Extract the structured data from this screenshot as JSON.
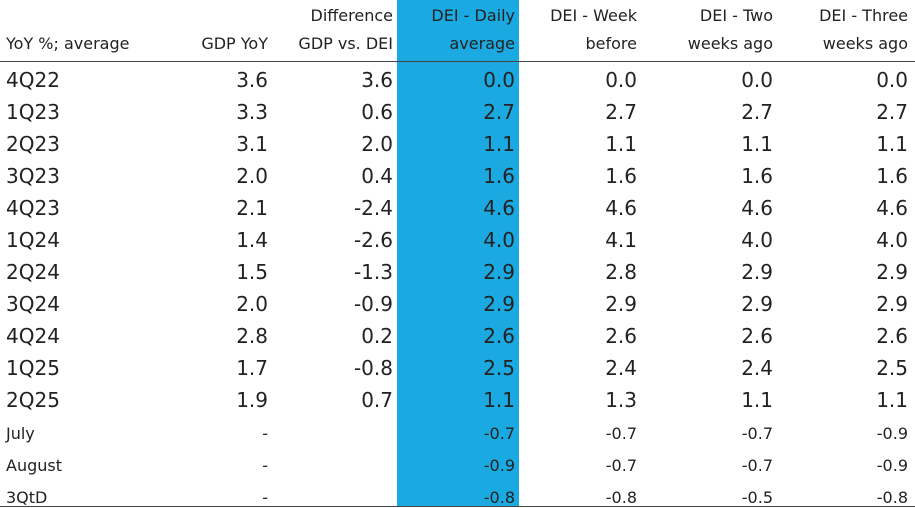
{
  "table": {
    "columns": [
      [
        "YoY %; average"
      ],
      [
        "GDP YoY"
      ],
      [
        "Difference",
        "GDP vs. DEI"
      ],
      [
        "DEI - Daily",
        "average"
      ],
      [
        "DEI - Week",
        "before"
      ],
      [
        "DEI - Two",
        "weeks ago"
      ],
      [
        "DEI - Three",
        "weeks ago"
      ]
    ],
    "rows": [
      [
        "4Q22",
        "3.6",
        "3.6",
        "0.0",
        "0.0",
        "0.0",
        "0.0"
      ],
      [
        "1Q23",
        "3.3",
        "0.6",
        "2.7",
        "2.7",
        "2.7",
        "2.7"
      ],
      [
        "2Q23",
        "3.1",
        "2.0",
        "1.1",
        "1.1",
        "1.1",
        "1.1"
      ],
      [
        "3Q23",
        "2.0",
        "0.4",
        "1.6",
        "1.6",
        "1.6",
        "1.6"
      ],
      [
        "4Q23",
        "2.1",
        "-2.4",
        "4.6",
        "4.6",
        "4.6",
        "4.6"
      ],
      [
        "1Q24",
        "1.4",
        "-2.6",
        "4.0",
        "4.1",
        "4.0",
        "4.0"
      ],
      [
        "2Q24",
        "1.5",
        "-1.3",
        "2.9",
        "2.8",
        "2.9",
        "2.9"
      ],
      [
        "3Q24",
        "2.0",
        "-0.9",
        "2.9",
        "2.9",
        "2.9",
        "2.9"
      ],
      [
        "4Q24",
        "2.8",
        "0.2",
        "2.6",
        "2.6",
        "2.6",
        "2.6"
      ],
      [
        "1Q25",
        "1.7",
        "-0.8",
        "2.5",
        "2.4",
        "2.4",
        "2.5"
      ],
      [
        "2Q25",
        "1.9",
        "0.7",
        "1.1",
        "1.3",
        "1.1",
        "1.1"
      ],
      [
        "July",
        "-",
        null,
        "-0.7",
        "-0.7",
        "-0.7",
        "-0.9"
      ],
      [
        "August",
        "-",
        null,
        "-0.9",
        "-0.7",
        "-0.7",
        "-0.9"
      ],
      [
        "3QtD",
        "-",
        null,
        "-0.8",
        "-0.8",
        "-0.5",
        "-0.8"
      ]
    ]
  }
}
